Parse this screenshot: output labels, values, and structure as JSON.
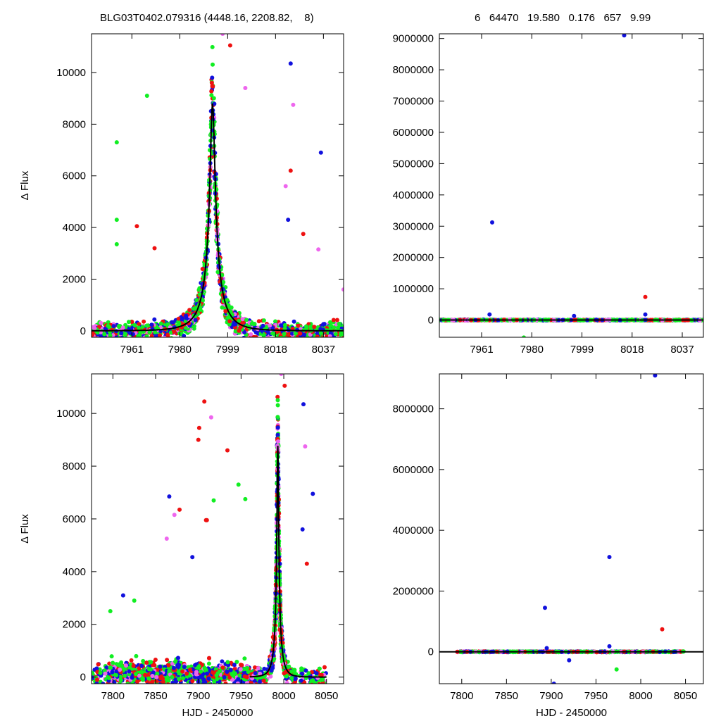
{
  "header": {
    "left_title": "BLG03T0402.079316 (4448.16, 2208.82,    8)",
    "right_title": "6   64470   19.580   0.176   657   9.99"
  },
  "colors": {
    "red": "#ee1111",
    "blue": "#1111dd",
    "green": "#11ee22",
    "violet": "#ee66ee",
    "model": "#000000"
  },
  "chart_data": [
    {
      "type": "scatter",
      "panel": "top-left",
      "xlabel": "",
      "ylabel": "Δ Flux",
      "xlim": [
        7945,
        8045
      ],
      "ylim": [
        -250,
        11500
      ],
      "xticks": [
        7961,
        7980,
        7999,
        8018,
        8037
      ],
      "yticks": [
        0,
        2000,
        4000,
        6000,
        8000,
        10000
      ],
      "grid": false,
      "model": {
        "t0": 7993.0,
        "tE": 9.0,
        "peak": 8800,
        "description": "single-lens fit"
      },
      "outliers": [
        {
          "x": 7955,
          "y": 7300,
          "c": "green"
        },
        {
          "x": 7955,
          "y": 4300,
          "c": "green"
        },
        {
          "x": 7955,
          "y": 3350,
          "c": "green"
        },
        {
          "x": 7967,
          "y": 9100,
          "c": "green"
        },
        {
          "x": 7963,
          "y": 4050,
          "c": "red"
        },
        {
          "x": 7970,
          "y": 3200,
          "c": "red"
        },
        {
          "x": 8006,
          "y": 9400,
          "c": "violet"
        },
        {
          "x": 8024,
          "y": 10350,
          "c": "blue"
        },
        {
          "x": 8025,
          "y": 8750,
          "c": "violet"
        },
        {
          "x": 8024,
          "y": 6200,
          "c": "red"
        },
        {
          "x": 8022,
          "y": 5600,
          "c": "violet"
        },
        {
          "x": 8036,
          "y": 6900,
          "c": "blue"
        },
        {
          "x": 8023,
          "y": 4300,
          "c": "blue"
        },
        {
          "x": 8029,
          "y": 3750,
          "c": "red"
        },
        {
          "x": 8035,
          "y": 3150,
          "c": "violet"
        },
        {
          "x": 8045,
          "y": 1600,
          "c": "violet"
        },
        {
          "x": 7997,
          "y": 11500,
          "c": "violet"
        },
        {
          "x": 8000,
          "y": 11050,
          "c": "red"
        }
      ]
    },
    {
      "type": "scatter",
      "panel": "top-right",
      "xlabel": "",
      "ylabel": "",
      "xlim": [
        7945,
        8045
      ],
      "ylim": [
        -550000,
        9150000
      ],
      "xticks": [
        7961,
        7980,
        7999,
        8018,
        8037
      ],
      "yticks": [
        0,
        1000000,
        2000000,
        3000000,
        4000000,
        5000000,
        6000000,
        7000000,
        8000000,
        9000000
      ],
      "grid": false,
      "outliers": [
        {
          "x": 8015,
          "y": 9100000,
          "c": "blue"
        },
        {
          "x": 7965,
          "y": 3120000,
          "c": "blue"
        },
        {
          "x": 8023,
          "y": 740000,
          "c": "red"
        },
        {
          "x": 7964,
          "y": 180000,
          "c": "blue"
        },
        {
          "x": 7977,
          "y": -560000,
          "c": "green"
        },
        {
          "x": 7996,
          "y": 130000,
          "c": "blue"
        },
        {
          "x": 8023,
          "y": 180000,
          "c": "blue"
        }
      ]
    },
    {
      "type": "scatter",
      "panel": "bottom-left",
      "xlabel": "HJD - 2450000",
      "ylabel": "Δ Flux",
      "xlim": [
        7775,
        8070
      ],
      "ylim": [
        -250,
        11500
      ],
      "xticks": [
        7800,
        7850,
        7900,
        7950,
        8000,
        8050
      ],
      "yticks": [
        0,
        2000,
        4000,
        6000,
        8000,
        10000
      ],
      "grid": false,
      "model": {
        "t0": 7993.0,
        "tE": 9.0,
        "peak": 8800,
        "description": "single-lens fit"
      },
      "outliers": [
        {
          "x": 7797,
          "y": 2500,
          "c": "green"
        },
        {
          "x": 7812,
          "y": 3100,
          "c": "blue"
        },
        {
          "x": 7825,
          "y": 2900,
          "c": "green"
        },
        {
          "x": 7866,
          "y": 6850,
          "c": "blue"
        },
        {
          "x": 7863,
          "y": 5250,
          "c": "violet"
        },
        {
          "x": 7878,
          "y": 6350,
          "c": "red"
        },
        {
          "x": 7872,
          "y": 6150,
          "c": "violet"
        },
        {
          "x": 7900,
          "y": 9000,
          "c": "red"
        },
        {
          "x": 7901,
          "y": 9450,
          "c": "red"
        },
        {
          "x": 7907,
          "y": 10450,
          "c": "red"
        },
        {
          "x": 7915,
          "y": 9850,
          "c": "violet"
        },
        {
          "x": 7918,
          "y": 6700,
          "c": "green"
        },
        {
          "x": 7934,
          "y": 8600,
          "c": "red"
        },
        {
          "x": 7947,
          "y": 7300,
          "c": "green"
        },
        {
          "x": 7955,
          "y": 6750,
          "c": "green"
        },
        {
          "x": 7910,
          "y": 5950,
          "c": "red"
        },
        {
          "x": 7909,
          "y": 5950,
          "c": "red"
        },
        {
          "x": 7893,
          "y": 4550,
          "c": "blue"
        },
        {
          "x": 8023,
          "y": 10350,
          "c": "blue"
        },
        {
          "x": 8025,
          "y": 8750,
          "c": "violet"
        },
        {
          "x": 8034,
          "y": 6950,
          "c": "blue"
        },
        {
          "x": 8022,
          "y": 5600,
          "c": "blue"
        },
        {
          "x": 8027,
          "y": 4300,
          "c": "red"
        },
        {
          "x": 7997,
          "y": 11500,
          "c": "violet"
        },
        {
          "x": 8001,
          "y": 11050,
          "c": "red"
        }
      ]
    },
    {
      "type": "scatter",
      "panel": "bottom-right",
      "xlabel": "HJD - 2450000",
      "ylabel": "",
      "xlim": [
        7775,
        8070
      ],
      "ylim": [
        -1050000,
        9150000
      ],
      "xticks": [
        7800,
        7850,
        7900,
        7950,
        8000,
        8050
      ],
      "yticks": [
        0,
        2000000,
        4000000,
        6000000,
        8000000
      ],
      "grid": false,
      "outliers": [
        {
          "x": 8016,
          "y": 9100000,
          "c": "blue"
        },
        {
          "x": 7965,
          "y": 3120000,
          "c": "blue"
        },
        {
          "x": 7893,
          "y": 1450000,
          "c": "blue"
        },
        {
          "x": 8024,
          "y": 740000,
          "c": "red"
        },
        {
          "x": 7903,
          "y": -1050000,
          "c": "blue"
        },
        {
          "x": 7973,
          "y": -580000,
          "c": "green"
        },
        {
          "x": 7920,
          "y": -280000,
          "c": "blue"
        },
        {
          "x": 7965,
          "y": 180000,
          "c": "blue"
        },
        {
          "x": 7895,
          "y": 120000,
          "c": "blue"
        }
      ]
    }
  ]
}
